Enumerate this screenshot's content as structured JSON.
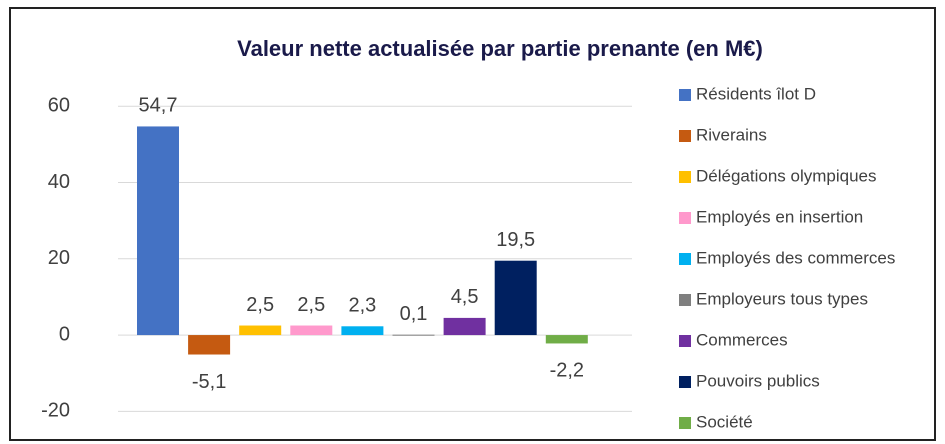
{
  "chart_data": {
    "type": "bar",
    "title": "Valeur nette actualisée par partie prenante (en M€)",
    "categories": [
      "Résidents îlot D",
      "Riverains",
      "Délégations olympiques",
      "Employés en insertion",
      "Employés des commerces",
      "Employeurs tous types",
      "Commerces",
      "Pouvoirs publics",
      "Société"
    ],
    "values": [
      54.7,
      -5.1,
      2.5,
      2.5,
      2.3,
      0.1,
      4.5,
      19.5,
      -2.2
    ],
    "value_labels": [
      "54,7",
      "-5,1",
      "2,5",
      "2,5",
      "2,3",
      "0,1",
      "4,5",
      "19,5",
      "-2,2"
    ],
    "colors": [
      "#4472c4",
      "#c55a11",
      "#ffc000",
      "#ff99cc",
      "#00b0f0",
      "#7f7f7f",
      "#7030a0",
      "#002060",
      "#70ad47"
    ],
    "ylim": [
      -24,
      62
    ],
    "yticks": [
      -20,
      0,
      20,
      40,
      60
    ],
    "grid": true,
    "legend": "right"
  }
}
